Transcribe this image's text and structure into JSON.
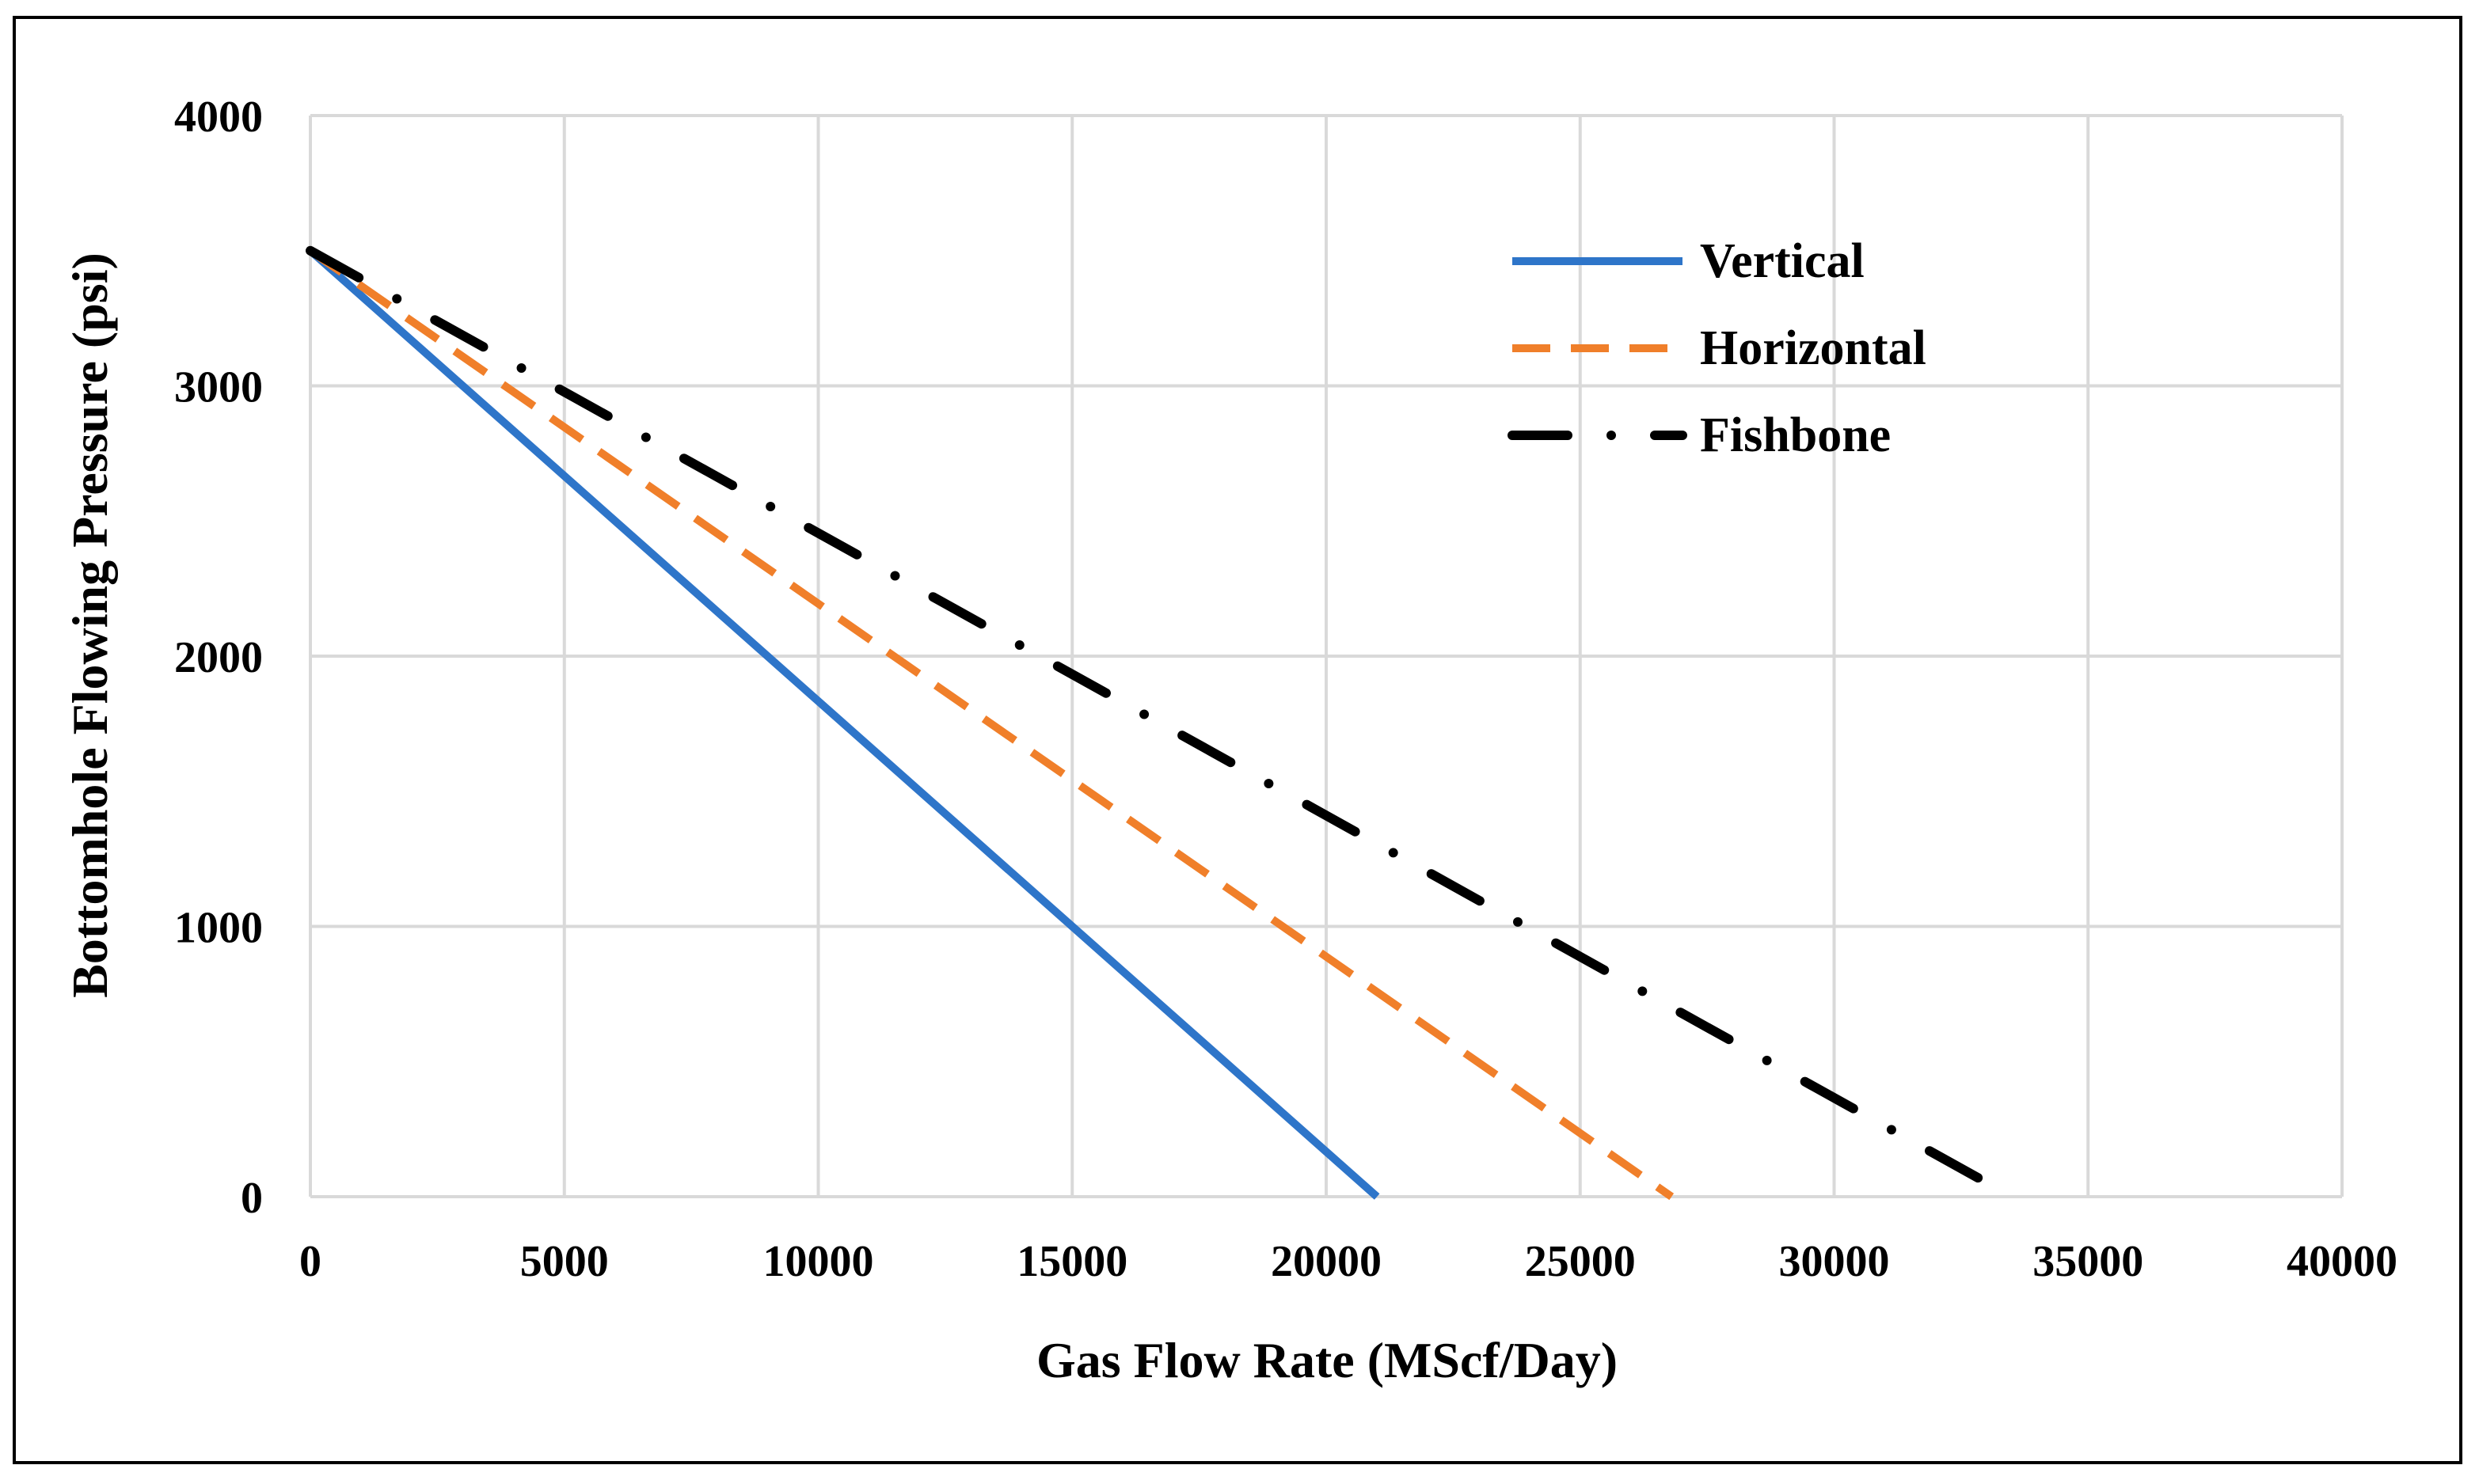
{
  "chart_data": {
    "type": "line",
    "title": "",
    "xlabel": "Gas Flow Rate (MScf/Day)",
    "ylabel": "Bottomhole Flowing Pressure (psi)",
    "xlim": [
      0,
      40000
    ],
    "ylim": [
      0,
      4000
    ],
    "xticks": [
      0,
      5000,
      10000,
      15000,
      20000,
      25000,
      30000,
      35000,
      40000
    ],
    "yticks": [
      0,
      1000,
      2000,
      3000,
      4000
    ],
    "xtick_labels": [
      "0",
      "5000",
      "10000",
      "15000",
      "20000",
      "25000",
      "30000",
      "35000",
      "40000"
    ],
    "ytick_labels": [
      "0",
      "1000",
      "2000",
      "3000",
      "4000"
    ],
    "grid": true,
    "legend_position": "top-right",
    "series": [
      {
        "name": "Vertical",
        "color": "#2E75C9",
        "style": "solid",
        "x": [
          0,
          21000
        ],
        "y": [
          3500,
          0
        ]
      },
      {
        "name": "Horizontal",
        "color": "#F07F2A",
        "style": "dashed",
        "x": [
          0,
          26800
        ],
        "y": [
          3500,
          0
        ]
      },
      {
        "name": "Fishbone",
        "color": "#000000",
        "style": "dash-dot",
        "x": [
          0,
          33500
        ],
        "y": [
          3500,
          0
        ]
      }
    ]
  }
}
